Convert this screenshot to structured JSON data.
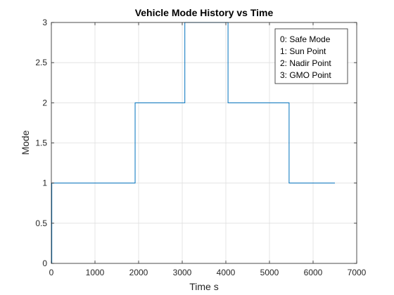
{
  "chart_data": {
    "type": "line",
    "title": "Vehicle Mode History vs Time",
    "xlabel": "Time s",
    "ylabel": "Mode",
    "xlim": [
      0,
      7000
    ],
    "ylim": [
      0,
      3
    ],
    "xticks": [
      0,
      1000,
      2000,
      3000,
      4000,
      5000,
      6000,
      7000
    ],
    "yticks": [
      0,
      0.5,
      1,
      1.5,
      2,
      2.5,
      3
    ],
    "xtick_labels": [
      "0",
      "1000",
      "2000",
      "3000",
      "4000",
      "5000",
      "6000",
      "7000"
    ],
    "ytick_labels": [
      "0",
      "0.5",
      "1",
      "1.5",
      "2",
      "2.5",
      "3"
    ],
    "grid": true,
    "legend_position": "top-right",
    "legend": [
      "0: Safe Mode",
      "1: Sun Point",
      "2: Nadir Point",
      "3: GMO Point"
    ],
    "series": [
      {
        "color": "#0072bd",
        "step": true,
        "x": [
          0,
          10,
          1920,
          3060,
          4050,
          5450,
          6500
        ],
        "y": [
          0,
          1,
          2,
          3,
          2,
          1,
          1
        ]
      }
    ]
  }
}
